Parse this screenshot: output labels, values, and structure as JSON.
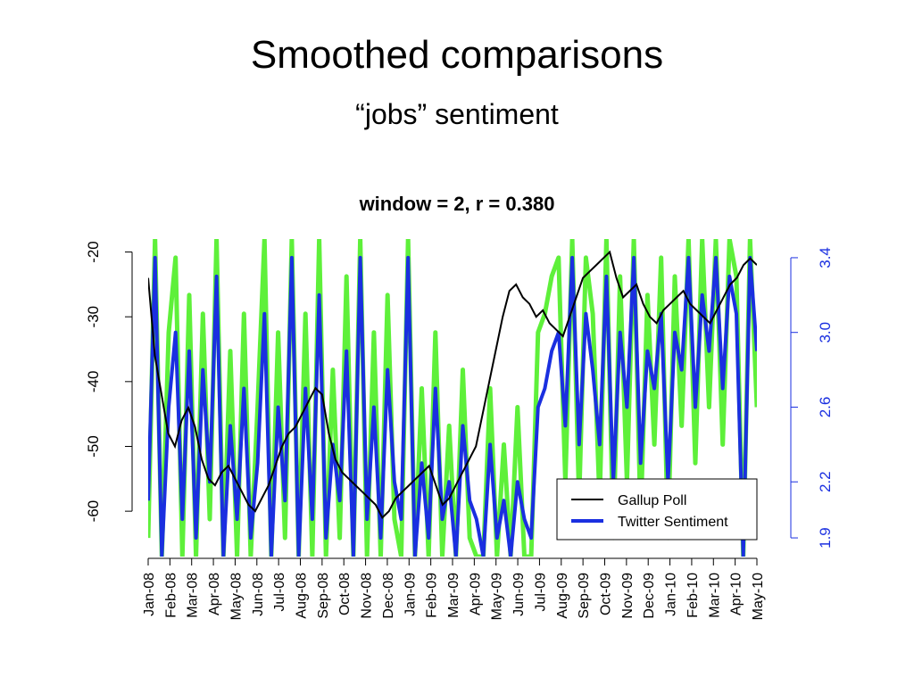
{
  "slide": {
    "title": "Smoothed comparisons",
    "subtitle": "“jobs” sentiment"
  },
  "chart_data": {
    "type": "line",
    "title": "window = 2, r = 0.380",
    "months": [
      "Jan-08",
      "Feb-08",
      "Mar-08",
      "Apr-08",
      "May-08",
      "Jun-08",
      "Jul-08",
      "Aug-08",
      "Sep-08",
      "Oct-08",
      "Nov-08",
      "Dec-08",
      "Jan-09",
      "Feb-09",
      "Mar-09",
      "Apr-09",
      "May-09",
      "Jun-09",
      "Jul-09",
      "Aug-09",
      "Sep-09",
      "Oct-09",
      "Nov-09",
      "Dec-09",
      "Jan-10",
      "Feb-10",
      "Mar-10",
      "Apr-10",
      "May-10"
    ],
    "y_left": {
      "ticks": [
        -20,
        -30,
        -40,
        -50,
        -60
      ],
      "range": [
        -67,
        -18
      ]
    },
    "y_right": {
      "ticks": [
        3.4,
        3.0,
        2.6,
        2.2,
        1.9
      ],
      "range": [
        1.8,
        3.5
      ],
      "color": "#1a2fe0"
    },
    "legend": {
      "placement": "bottom-right",
      "entries": [
        {
          "name": "Gallup Poll",
          "color": "#000000"
        },
        {
          "name": "Twitter Sentiment",
          "color": "#1a2fe0"
        }
      ]
    },
    "colors": {
      "gallup": "#000000",
      "twitter": "#1a2fe0",
      "raw_twitter": "#5ef03a"
    },
    "gallup_series": [
      -24,
      -36,
      -42,
      -48,
      -50,
      -46,
      -44,
      -47,
      -52,
      -55,
      -56,
      -54,
      -53,
      -55,
      -57,
      -59,
      -60,
      -58,
      -56,
      -53,
      -50,
      -48,
      -47,
      -45,
      -43,
      -41,
      -42,
      -48,
      -52,
      -54,
      -55,
      -56,
      -57,
      -58,
      -59,
      -61,
      -60,
      -58,
      -57,
      -56,
      -55,
      -54,
      -53,
      -56,
      -59,
      -58,
      -56,
      -54,
      -52,
      -50,
      -45,
      -40,
      -35,
      -30,
      -26,
      -25,
      -27,
      -28,
      -30,
      -29,
      -31,
      -32,
      -33,
      -30,
      -27,
      -24,
      -23,
      -22,
      -21,
      -20,
      -24,
      -27,
      -26,
      -25,
      -28,
      -30,
      -31,
      -29,
      -28,
      -27,
      -26,
      -28,
      -29,
      -30,
      -31,
      -29,
      -27,
      -25,
      -24,
      -22,
      -21,
      -22
    ],
    "twitter_series": [
      2.1,
      3.4,
      1.8,
      2.6,
      3.0,
      2.0,
      2.9,
      1.9,
      2.8,
      2.2,
      3.3,
      1.8,
      2.5,
      2.0,
      2.7,
      1.9,
      2.3,
      3.1,
      1.8,
      2.6,
      2.1,
      3.4,
      1.8,
      2.7,
      2.0,
      3.2,
      1.9,
      2.4,
      2.1,
      2.9,
      1.8,
      3.4,
      2.0,
      2.6,
      1.9,
      2.8,
      2.2,
      2.0,
      3.4,
      1.8,
      2.3,
      1.9,
      2.7,
      2.0,
      2.2,
      1.8,
      2.5,
      2.1,
      2.0,
      1.8,
      2.4,
      1.9,
      2.1,
      1.8,
      2.2,
      2.0,
      1.9,
      2.6,
      2.7,
      2.9,
      3.0,
      2.5,
      3.4,
      2.4,
      3.1,
      2.8,
      2.4,
      3.3,
      2.2,
      3.0,
      2.6,
      3.4,
      2.3,
      2.9,
      2.7,
      3.1,
      2.2,
      3.0,
      2.8,
      3.4,
      2.6,
      3.2,
      2.9,
      3.4,
      2.7,
      3.3,
      3.1,
      1.8,
      3.4,
      2.9
    ],
    "raw_twitter_series": [
      1.9,
      3.5,
      1.8,
      3.0,
      3.4,
      1.8,
      3.2,
      1.8,
      3.1,
      2.0,
      3.5,
      1.8,
      2.9,
      1.8,
      3.1,
      1.8,
      2.6,
      3.5,
      1.8,
      3.0,
      1.9,
      3.5,
      1.8,
      3.1,
      1.8,
      3.5,
      1.8,
      2.8,
      1.9,
      3.3,
      1.8,
      3.5,
      1.8,
      3.0,
      1.8,
      3.2,
      2.0,
      1.8,
      3.5,
      1.8,
      2.7,
      1.8,
      3.0,
      1.8,
      2.5,
      1.8,
      2.8,
      1.9,
      1.8,
      1.8,
      2.7,
      1.8,
      2.4,
      1.8,
      2.6,
      1.8,
      1.8,
      3.0,
      3.1,
      3.3,
      3.4,
      2.2,
      3.5,
      2.1,
      3.4,
      3.1,
      2.1,
      3.5,
      1.9,
      3.3,
      2.2,
      3.5,
      2.0,
      3.2,
      2.4,
      3.4,
      1.9,
      3.3,
      2.5,
      3.5,
      2.3,
      3.5,
      2.6,
      3.5,
      2.4,
      3.5,
      3.3,
      1.8,
      3.5,
      2.6
    ]
  }
}
